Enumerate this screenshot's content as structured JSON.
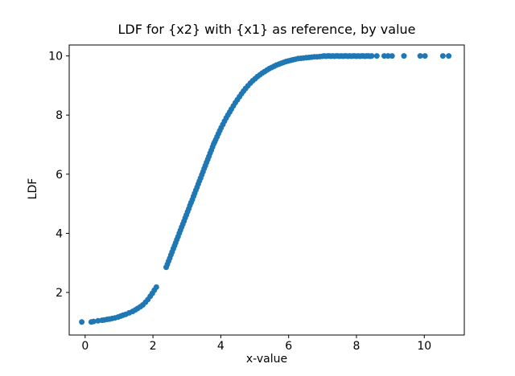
{
  "chart_data": {
    "type": "scatter",
    "title": "LDF for {x2} with {x1} as reference, by value",
    "xlabel": "x-value",
    "ylabel": "LDF",
    "marker_color": "#1f77b4",
    "marker_radius_px": 3.5,
    "axis_color": "#000000",
    "grid": "off",
    "legend": "none",
    "xlim": [
      -0.47,
      11.18
    ],
    "ylim": [
      0.56,
      10.37
    ],
    "xticks": [
      0,
      2,
      4,
      6,
      8,
      10
    ],
    "yticks": [
      2,
      4,
      6,
      8,
      10
    ],
    "x": [
      -0.1,
      0.18,
      0.25,
      0.38,
      0.5,
      0.57,
      0.65,
      0.72,
      0.8,
      0.88,
      0.97,
      1.05,
      1.12,
      1.2,
      1.3,
      1.4,
      1.48,
      1.55,
      1.63,
      1.7,
      1.78,
      1.85,
      1.92,
      1.98,
      2.04,
      2.1,
      2.39,
      2.425,
      2.46,
      2.495,
      2.53,
      2.565,
      2.6,
      2.635,
      2.67,
      2.705,
      2.74,
      2.775,
      2.81,
      2.845,
      2.88,
      2.915,
      2.95,
      2.985,
      3.02,
      3.055,
      3.09,
      3.125,
      3.16,
      3.195,
      3.23,
      3.265,
      3.3,
      3.335,
      3.37,
      3.405,
      3.44,
      3.475,
      3.51,
      3.545,
      3.58,
      3.615,
      3.65,
      3.685,
      3.72,
      3.755,
      3.79,
      3.82,
      3.85,
      3.89,
      3.93,
      3.97,
      4.01,
      4.06,
      4.11,
      4.16,
      4.21,
      4.26,
      4.31,
      4.37,
      4.43,
      4.49,
      4.55,
      4.61,
      4.67,
      4.73,
      4.8,
      4.87,
      4.94,
      5.01,
      5.08,
      5.15,
      5.22,
      5.29,
      5.36,
      5.43,
      5.5,
      5.57,
      5.64,
      5.71,
      5.78,
      5.85,
      5.92,
      5.99,
      6.06,
      6.13,
      6.2,
      6.28,
      6.36,
      6.44,
      6.52,
      6.6,
      6.68,
      6.76,
      6.84,
      6.92,
      7.0,
      7.05,
      7.1,
      7.15,
      7.2,
      7.25,
      7.3,
      7.35,
      7.4,
      7.45,
      7.5,
      7.55,
      7.6,
      7.65,
      7.7,
      7.75,
      7.8,
      7.85,
      7.9,
      7.95,
      8.0,
      8.05,
      8.1,
      8.15,
      8.2,
      8.25,
      8.3,
      8.35,
      8.4,
      8.45,
      8.6,
      8.82,
      8.93,
      9.05,
      9.4,
      9.88,
      10.02,
      10.55,
      10.72
    ],
    "y": [
      1.0,
      1.0,
      1.02,
      1.04,
      1.06,
      1.07,
      1.09,
      1.1,
      1.12,
      1.14,
      1.17,
      1.2,
      1.23,
      1.26,
      1.31,
      1.36,
      1.41,
      1.46,
      1.52,
      1.58,
      1.67,
      1.76,
      1.87,
      1.97,
      2.08,
      2.18,
      2.85,
      2.95,
      3.06,
      3.16,
      3.27,
      3.37,
      3.48,
      3.58,
      3.68,
      3.79,
      3.89,
      4.0,
      4.1,
      4.21,
      4.31,
      4.41,
      4.52,
      4.62,
      4.73,
      4.83,
      4.94,
      5.04,
      5.14,
      5.25,
      5.35,
      5.46,
      5.56,
      5.67,
      5.77,
      5.87,
      5.98,
      6.08,
      6.19,
      6.29,
      6.4,
      6.5,
      6.6,
      6.71,
      6.81,
      6.92,
      7.02,
      7.09,
      7.17,
      7.27,
      7.37,
      7.47,
      7.57,
      7.68,
      7.79,
      7.9,
      8.0,
      8.1,
      8.2,
      8.31,
      8.42,
      8.52,
      8.62,
      8.72,
      8.81,
      8.9,
      8.99,
      9.08,
      9.16,
      9.23,
      9.3,
      9.36,
      9.42,
      9.47,
      9.52,
      9.57,
      9.61,
      9.65,
      9.69,
      9.72,
      9.75,
      9.78,
      9.81,
      9.83,
      9.85,
      9.87,
      9.89,
      9.91,
      9.92,
      9.93,
      9.94,
      9.95,
      9.96,
      9.97,
      9.97,
      9.98,
      9.99,
      10.0,
      9.99,
      10.0,
      10.0,
      9.99,
      10.0,
      9.99,
      10.0,
      10.0,
      9.99,
      10.0,
      9.99,
      10.0,
      10.0,
      9.99,
      10.0,
      9.99,
      10.0,
      10.0,
      9.99,
      10.0,
      9.99,
      10.0,
      10.0,
      9.99,
      10.0,
      10.0,
      9.99,
      10.0,
      10.0,
      10.0,
      10.0,
      10.0,
      10.0,
      10.0,
      10.0,
      10.0,
      10.0
    ]
  }
}
